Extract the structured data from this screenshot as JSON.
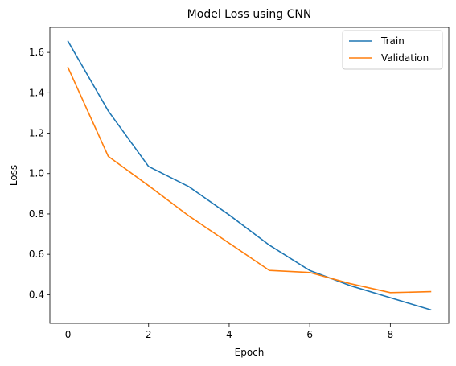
{
  "chart_data": {
    "type": "line",
    "title": "Model Loss using CNN",
    "xlabel": "Epoch",
    "ylabel": "Loss",
    "x": [
      0,
      1,
      2,
      3,
      4,
      5,
      6,
      7,
      8,
      9
    ],
    "xlim": [
      -0.45,
      9.45
    ],
    "ylim": [
      0.258,
      1.724
    ],
    "xticks": [
      0,
      2,
      4,
      6,
      8
    ],
    "yticks": [
      0.4,
      0.6,
      0.8,
      1.0,
      1.2,
      1.4,
      1.6
    ],
    "ytick_labels": [
      "0.4",
      "0.6",
      "0.8",
      "1.0",
      "1.2",
      "1.4",
      "1.6"
    ],
    "grid": false,
    "legend_position": "top-right",
    "series": [
      {
        "name": "Train",
        "color": "#1f77b4",
        "values": [
          1.655,
          1.31,
          1.035,
          0.935,
          0.795,
          0.645,
          0.52,
          0.445,
          0.385,
          0.325
        ]
      },
      {
        "name": "Validation",
        "color": "#ff7f0e",
        "values": [
          1.525,
          1.085,
          0.94,
          0.79,
          0.655,
          0.52,
          0.51,
          0.455,
          0.41,
          0.415
        ]
      }
    ]
  }
}
